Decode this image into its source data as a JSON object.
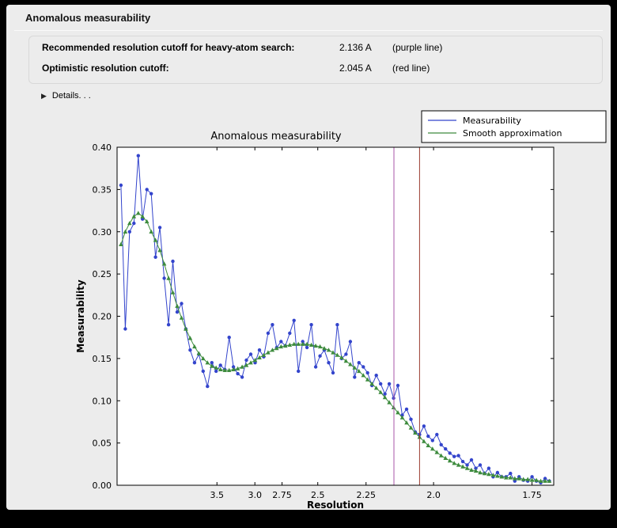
{
  "window": {
    "title": "Anomalous measurability"
  },
  "info": {
    "rows": [
      {
        "label": "Recommended resolution cutoff for heavy-atom search:",
        "value": "2.136 A",
        "note": "(purple line)"
      },
      {
        "label": "Optimistic resolution cutoff:",
        "value": "2.045 A",
        "note": "(red line)"
      }
    ]
  },
  "details": {
    "icon": "▶",
    "label": "Details. . ."
  },
  "chart_data": {
    "type": "line",
    "title": "Anomalous measurability",
    "xlabel": "Resolution",
    "ylabel": "Measurability",
    "grid": false,
    "x_axis": {
      "scale": "1_over_d_squared",
      "tick_labels": [
        "3.5",
        "3.0",
        "2.75",
        "2.5",
        "2.25",
        "2.0",
        "1.75"
      ],
      "range_s": [
        0.004,
        0.3434
      ]
    },
    "y_axis": {
      "ticks": [
        "0.00",
        "0.05",
        "0.10",
        "0.15",
        "0.20",
        "0.25",
        "0.30",
        "0.35",
        "0.40"
      ],
      "lim": [
        0.0,
        0.4
      ]
    },
    "legend": {
      "position": "top-right"
    },
    "series": [
      {
        "name": "Measurability",
        "color": "#3344cc",
        "marker": "circle",
        "s_start": 0.007,
        "s_step": 0.003364,
        "y": [
          0.355,
          0.185,
          0.3,
          0.31,
          0.39,
          0.315,
          0.35,
          0.345,
          0.27,
          0.305,
          0.245,
          0.19,
          0.265,
          0.205,
          0.215,
          0.185,
          0.16,
          0.145,
          0.155,
          0.135,
          0.117,
          0.145,
          0.135,
          0.142,
          0.137,
          0.175,
          0.14,
          0.132,
          0.128,
          0.148,
          0.155,
          0.145,
          0.16,
          0.152,
          0.18,
          0.19,
          0.163,
          0.17,
          0.165,
          0.18,
          0.195,
          0.135,
          0.17,
          0.163,
          0.19,
          0.14,
          0.153,
          0.16,
          0.145,
          0.133,
          0.19,
          0.15,
          0.155,
          0.17,
          0.128,
          0.145,
          0.14,
          0.133,
          0.118,
          0.13,
          0.12,
          0.108,
          0.12,
          0.103,
          0.118,
          0.083,
          0.09,
          0.078,
          0.063,
          0.06,
          0.07,
          0.058,
          0.053,
          0.06,
          0.048,
          0.043,
          0.038,
          0.034,
          0.035,
          0.028,
          0.024,
          0.03,
          0.02,
          0.024,
          0.014,
          0.02,
          0.01,
          0.015,
          0.01,
          0.01,
          0.014,
          0.005,
          0.01,
          0.006,
          0.005,
          0.01,
          0.005,
          0.003,
          0.008,
          0.005
        ]
      },
      {
        "name": "Smooth approximation",
        "color": "#3d8b3d",
        "marker": "triangle",
        "s_start": 0.007,
        "s_step": 0.003364,
        "y": [
          0.285,
          0.3,
          0.31,
          0.318,
          0.322,
          0.318,
          0.312,
          0.3,
          0.29,
          0.278,
          0.262,
          0.245,
          0.228,
          0.212,
          0.198,
          0.185,
          0.174,
          0.164,
          0.156,
          0.15,
          0.145,
          0.141,
          0.139,
          0.137,
          0.136,
          0.136,
          0.137,
          0.138,
          0.14,
          0.142,
          0.145,
          0.148,
          0.151,
          0.154,
          0.157,
          0.16,
          0.162,
          0.164,
          0.165,
          0.166,
          0.167,
          0.167,
          0.167,
          0.167,
          0.166,
          0.165,
          0.164,
          0.162,
          0.16,
          0.157,
          0.154,
          0.151,
          0.147,
          0.143,
          0.139,
          0.135,
          0.13,
          0.125,
          0.12,
          0.115,
          0.11,
          0.104,
          0.098,
          0.092,
          0.086,
          0.08,
          0.074,
          0.068,
          0.062,
          0.057,
          0.052,
          0.047,
          0.043,
          0.039,
          0.035,
          0.032,
          0.029,
          0.026,
          0.024,
          0.022,
          0.02,
          0.018,
          0.017,
          0.015,
          0.014,
          0.013,
          0.012,
          0.011,
          0.01,
          0.009,
          0.009,
          0.008,
          0.008,
          0.007,
          0.007,
          0.006,
          0.006,
          0.005,
          0.005,
          0.005
        ]
      }
    ],
    "vlines": [
      {
        "name": "recommended-cutoff",
        "label": "purple line",
        "d": 2.136,
        "color": "#aa55aa"
      },
      {
        "name": "optimistic-cutoff",
        "label": "red line",
        "d": 2.045,
        "color": "#9a3b2e"
      }
    ]
  }
}
